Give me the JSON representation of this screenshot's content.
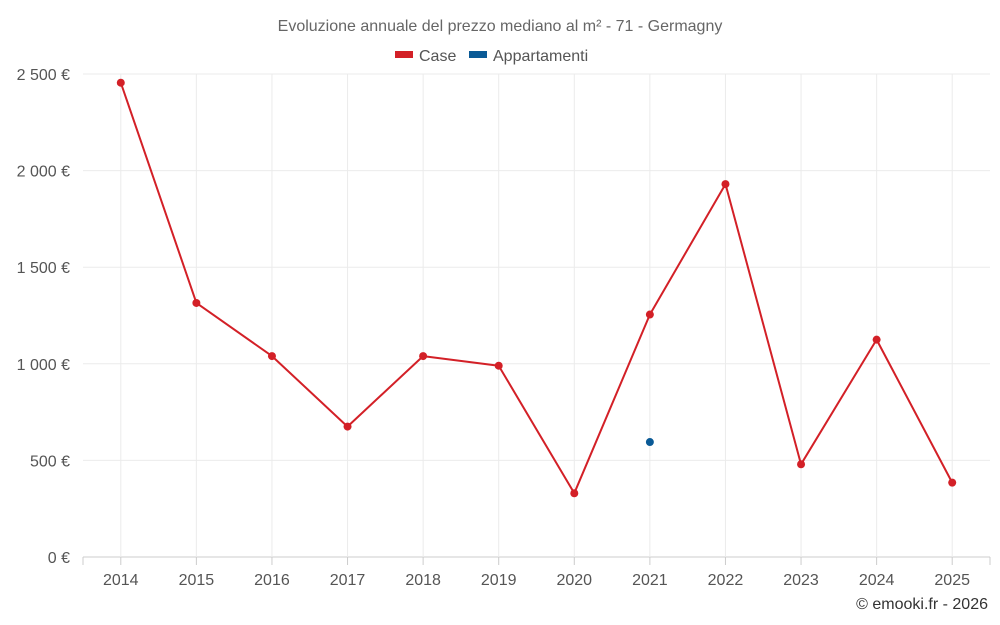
{
  "chart_data": {
    "type": "line",
    "title": "Evoluzione annuale del prezzo mediano al m² - 71 - Germagny",
    "xlabel": "",
    "ylabel": "",
    "categories": [
      "2014",
      "2015",
      "2016",
      "2017",
      "2018",
      "2019",
      "2020",
      "2021",
      "2022",
      "2023",
      "2024",
      "2025"
    ],
    "ylim": [
      0,
      2500
    ],
    "yticks": [
      0,
      500,
      1000,
      1500,
      2000,
      2500
    ],
    "ytick_labels": [
      "0 €",
      "500 €",
      "1 000 €",
      "1 500 €",
      "2 000 €",
      "2 500 €"
    ],
    "grid": true,
    "legend_position": "top-center",
    "series": [
      {
        "name": "Case",
        "color": "#d32027",
        "values": [
          2455,
          1315,
          1040,
          675,
          1040,
          990,
          330,
          1255,
          1930,
          480,
          1125,
          385
        ]
      },
      {
        "name": "Appartamenti",
        "color": "#0a5a96",
        "values": [
          null,
          null,
          null,
          null,
          null,
          null,
          null,
          595,
          null,
          null,
          null,
          null
        ]
      }
    ]
  },
  "credit": "© emooki.fr - 2026"
}
